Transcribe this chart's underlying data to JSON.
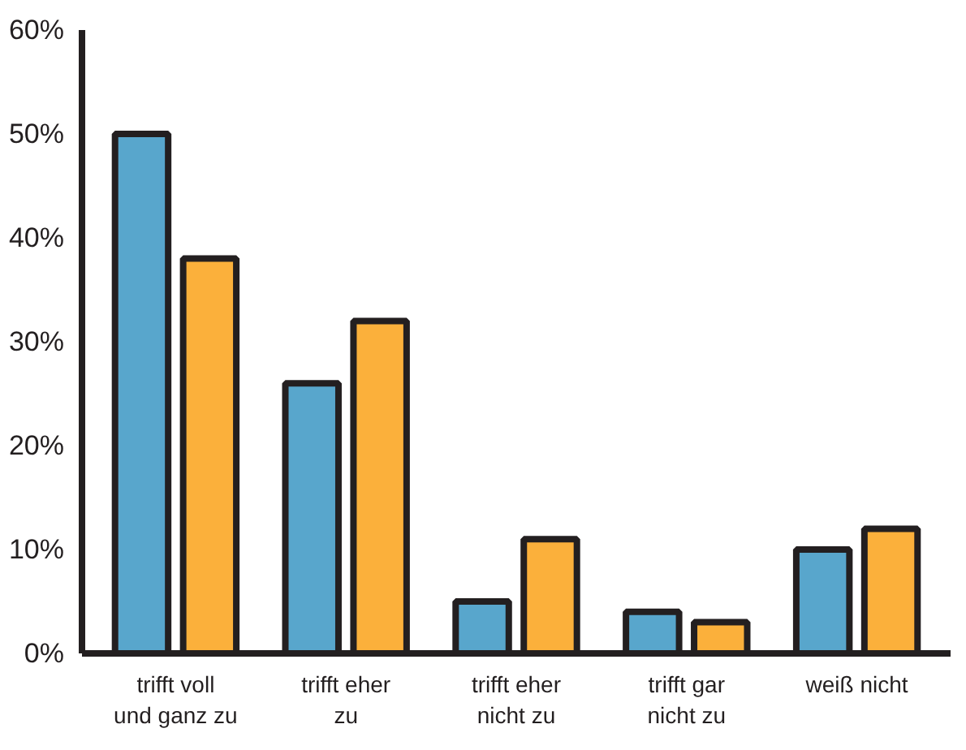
{
  "chart_data": {
    "type": "bar",
    "categories": [
      "trifft voll und ganz zu",
      "trifft eher zu",
      "trifft eher nicht zu",
      "trifft gar nicht zu",
      "weiß nicht"
    ],
    "series": [
      {
        "color": "#58a6cc",
        "values": [
          50,
          26,
          5,
          4,
          10
        ]
      },
      {
        "color": "#fbb03b",
        "values": [
          38,
          32,
          11,
          3,
          12
        ]
      }
    ],
    "ylim": [
      0,
      60
    ],
    "yticks": [
      {
        "value": 0,
        "label": "0%"
      },
      {
        "value": 10,
        "label": "10%"
      },
      {
        "value": 20,
        "label": "20%"
      },
      {
        "value": 30,
        "label": "30%"
      },
      {
        "value": 40,
        "label": "40%"
      },
      {
        "value": 50,
        "label": "50%"
      },
      {
        "value": 60,
        "label": "60%"
      }
    ],
    "grid": false
  }
}
